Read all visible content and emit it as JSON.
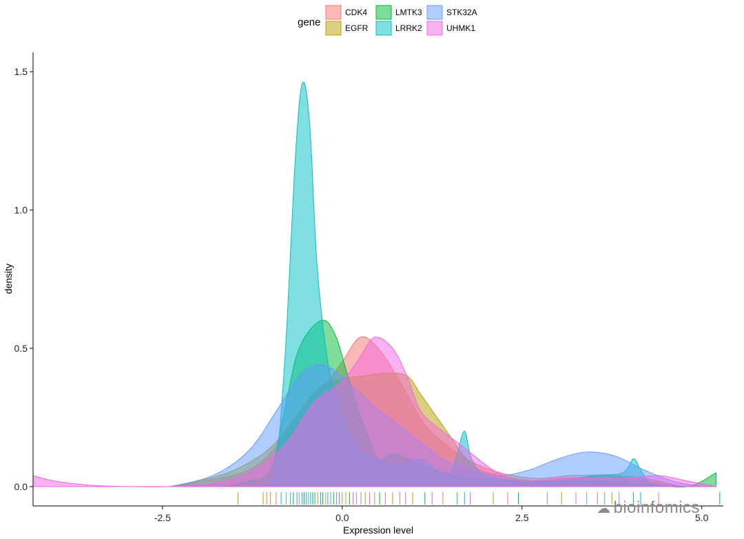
{
  "chart_data": {
    "type": "area",
    "xlabel": "Expression level",
    "ylabel": "density",
    "xlim": [
      -4.3,
      5.3
    ],
    "ylim": [
      -0.07,
      1.57
    ],
    "x_ticks": [
      -2.5,
      0.0,
      2.5,
      5.0
    ],
    "x_tick_labels": [
      "-2.5",
      "0.0",
      "2.5",
      "5.0"
    ],
    "y_ticks": [
      0.0,
      0.5,
      1.0,
      1.5
    ],
    "y_tick_labels": [
      "0.0",
      "0.5",
      "1.0",
      "1.5"
    ],
    "legend": {
      "title": "gene",
      "placement": "top"
    },
    "fill_opacity": 0.5,
    "series": [
      {
        "name": "CDK4",
        "color": "#F8766D",
        "points": [
          [
            -2.4,
            0.0
          ],
          [
            -1.9,
            0.02
          ],
          [
            -1.3,
            0.06
          ],
          [
            -0.9,
            0.15
          ],
          [
            -0.5,
            0.3
          ],
          [
            -0.2,
            0.38
          ],
          [
            0.0,
            0.45
          ],
          [
            0.25,
            0.54
          ],
          [
            0.5,
            0.5
          ],
          [
            0.8,
            0.38
          ],
          [
            1.1,
            0.24
          ],
          [
            1.4,
            0.16
          ],
          [
            1.8,
            0.09
          ],
          [
            2.2,
            0.05
          ],
          [
            2.7,
            0.03
          ],
          [
            3.2,
            0.04
          ],
          [
            3.7,
            0.04
          ],
          [
            4.2,
            0.02
          ],
          [
            4.7,
            0.0
          ]
        ]
      },
      {
        "name": "EGFR",
        "color": "#B79F00",
        "points": [
          [
            -2.4,
            0.0
          ],
          [
            -2.0,
            0.02
          ],
          [
            -1.5,
            0.06
          ],
          [
            -1.0,
            0.14
          ],
          [
            -0.6,
            0.27
          ],
          [
            -0.3,
            0.36
          ],
          [
            0.0,
            0.39
          ],
          [
            0.3,
            0.4
          ],
          [
            0.6,
            0.41
          ],
          [
            0.9,
            0.4
          ],
          [
            1.1,
            0.33
          ],
          [
            1.4,
            0.22
          ],
          [
            1.8,
            0.08
          ],
          [
            2.2,
            0.04
          ],
          [
            2.7,
            0.02
          ],
          [
            3.2,
            0.03
          ],
          [
            3.7,
            0.04
          ],
          [
            4.2,
            0.03
          ],
          [
            4.7,
            0.0
          ]
        ]
      },
      {
        "name": "LMTK3",
        "color": "#00BA38",
        "points": [
          [
            -1.6,
            0.0
          ],
          [
            -1.3,
            0.02
          ],
          [
            -1.0,
            0.06
          ],
          [
            -0.8,
            0.28
          ],
          [
            -0.6,
            0.5
          ],
          [
            -0.3,
            0.6
          ],
          [
            -0.1,
            0.55
          ],
          [
            0.1,
            0.38
          ],
          [
            0.3,
            0.22
          ],
          [
            0.5,
            0.1
          ],
          [
            0.7,
            0.12
          ],
          [
            0.9,
            0.1
          ],
          [
            1.1,
            0.08
          ],
          [
            1.4,
            0.05
          ],
          [
            1.8,
            0.03
          ],
          [
            2.5,
            0.02
          ],
          [
            3.5,
            0.02
          ],
          [
            4.2,
            0.01
          ],
          [
            4.8,
            0.0
          ],
          [
            5.2,
            0.05
          ]
        ]
      },
      {
        "name": "LRRK2",
        "color": "#00BFC4",
        "points": [
          [
            -1.2,
            0.0
          ],
          [
            -0.95,
            0.05
          ],
          [
            -0.8,
            0.45
          ],
          [
            -0.65,
            1.2
          ],
          [
            -0.55,
            1.46
          ],
          [
            -0.45,
            1.3
          ],
          [
            -0.35,
            0.8
          ],
          [
            -0.2,
            0.45
          ],
          [
            -0.05,
            0.3
          ],
          [
            0.2,
            0.15
          ],
          [
            0.5,
            0.1
          ],
          [
            0.8,
            0.08
          ],
          [
            1.1,
            0.1
          ],
          [
            1.3,
            0.06
          ],
          [
            1.5,
            0.05
          ],
          [
            1.6,
            0.12
          ],
          [
            1.7,
            0.2
          ],
          [
            1.8,
            0.1
          ],
          [
            2.0,
            0.04
          ],
          [
            2.5,
            0.02
          ],
          [
            3.0,
            0.02
          ],
          [
            3.5,
            0.04
          ],
          [
            3.9,
            0.05
          ],
          [
            4.05,
            0.1
          ],
          [
            4.15,
            0.06
          ],
          [
            4.3,
            0.01
          ],
          [
            4.6,
            0.0
          ]
        ]
      },
      {
        "name": "STK32A",
        "color": "#619CFF",
        "points": [
          [
            -2.4,
            0.0
          ],
          [
            -1.8,
            0.04
          ],
          [
            -1.3,
            0.13
          ],
          [
            -0.9,
            0.28
          ],
          [
            -0.6,
            0.4
          ],
          [
            -0.35,
            0.44
          ],
          [
            -0.1,
            0.42
          ],
          [
            0.2,
            0.35
          ],
          [
            0.5,
            0.28
          ],
          [
            0.8,
            0.22
          ],
          [
            1.1,
            0.16
          ],
          [
            1.4,
            0.1
          ],
          [
            1.8,
            0.06
          ],
          [
            2.2,
            0.04
          ],
          [
            2.6,
            0.06
          ],
          [
            3.0,
            0.1
          ],
          [
            3.4,
            0.125
          ],
          [
            3.8,
            0.11
          ],
          [
            4.2,
            0.06
          ],
          [
            4.6,
            0.02
          ],
          [
            5.0,
            0.0
          ]
        ]
      },
      {
        "name": "UHMK1",
        "color": "#F564E3",
        "points": [
          [
            -4.3,
            0.04
          ],
          [
            -4.0,
            0.02
          ],
          [
            -3.5,
            0.005
          ],
          [
            -3.0,
            0.0
          ],
          [
            -2.4,
            0.0
          ],
          [
            -1.8,
            0.01
          ],
          [
            -1.3,
            0.05
          ],
          [
            -0.8,
            0.15
          ],
          [
            -0.4,
            0.3
          ],
          [
            0.0,
            0.38
          ],
          [
            0.25,
            0.47
          ],
          [
            0.45,
            0.54
          ],
          [
            0.7,
            0.5
          ],
          [
            0.9,
            0.4
          ],
          [
            1.1,
            0.27
          ],
          [
            1.4,
            0.2
          ],
          [
            1.7,
            0.14
          ],
          [
            2.1,
            0.06
          ],
          [
            2.5,
            0.02
          ],
          [
            3.0,
            0.03
          ],
          [
            3.5,
            0.03
          ],
          [
            4.0,
            0.03
          ],
          [
            4.4,
            0.04
          ],
          [
            4.8,
            0.02
          ],
          [
            5.2,
            0.0
          ]
        ]
      }
    ],
    "rug": [
      {
        "x": -4.3,
        "color": "#F564E3"
      },
      {
        "x": -1.45,
        "color": "#B79F00"
      },
      {
        "x": -1.1,
        "color": "#B79F00"
      },
      {
        "x": -1.05,
        "color": "#F8766D"
      },
      {
        "x": -1.0,
        "color": "#B79F00"
      },
      {
        "x": -0.92,
        "color": "#F8766D"
      },
      {
        "x": -0.85,
        "color": "#00BFC4"
      },
      {
        "x": -0.78,
        "color": "#619CFF"
      },
      {
        "x": -0.72,
        "color": "#00BFC4"
      },
      {
        "x": -0.68,
        "color": "#00BA38"
      },
      {
        "x": -0.63,
        "color": "#00BFC4"
      },
      {
        "x": -0.6,
        "color": "#F564E3"
      },
      {
        "x": -0.56,
        "color": "#00BFC4"
      },
      {
        "x": -0.53,
        "color": "#00BA38"
      },
      {
        "x": -0.5,
        "color": "#00BFC4"
      },
      {
        "x": -0.47,
        "color": "#619CFF"
      },
      {
        "x": -0.44,
        "color": "#00BFC4"
      },
      {
        "x": -0.41,
        "color": "#00BA38"
      },
      {
        "x": -0.38,
        "color": "#00BFC4"
      },
      {
        "x": -0.34,
        "color": "#B79F00"
      },
      {
        "x": -0.3,
        "color": "#00BFC4"
      },
      {
        "x": -0.27,
        "color": "#00BA38"
      },
      {
        "x": -0.23,
        "color": "#F8766D"
      },
      {
        "x": -0.2,
        "color": "#00BFC4"
      },
      {
        "x": -0.16,
        "color": "#619CFF"
      },
      {
        "x": -0.12,
        "color": "#00BA38"
      },
      {
        "x": -0.08,
        "color": "#F564E3"
      },
      {
        "x": -0.04,
        "color": "#00BFC4"
      },
      {
        "x": 0.0,
        "color": "#F8766D"
      },
      {
        "x": 0.05,
        "color": "#B79F00"
      },
      {
        "x": 0.1,
        "color": "#00BA38"
      },
      {
        "x": 0.15,
        "color": "#F564E3"
      },
      {
        "x": 0.2,
        "color": "#F8766D"
      },
      {
        "x": 0.26,
        "color": "#619CFF"
      },
      {
        "x": 0.32,
        "color": "#B79F00"
      },
      {
        "x": 0.38,
        "color": "#F564E3"
      },
      {
        "x": 0.45,
        "color": "#F8766D"
      },
      {
        "x": 0.52,
        "color": "#00BA38"
      },
      {
        "x": 0.6,
        "color": "#F564E3"
      },
      {
        "x": 0.7,
        "color": "#B79F00"
      },
      {
        "x": 0.8,
        "color": "#F8766D"
      },
      {
        "x": 0.88,
        "color": "#F564E3"
      },
      {
        "x": 0.98,
        "color": "#B79F00"
      },
      {
        "x": 1.15,
        "color": "#00BA38"
      },
      {
        "x": 1.25,
        "color": "#F564E3"
      },
      {
        "x": 1.4,
        "color": "#F8766D"
      },
      {
        "x": 1.6,
        "color": "#00BFC4"
      },
      {
        "x": 1.7,
        "color": "#00BFC4"
      },
      {
        "x": 1.78,
        "color": "#F564E3"
      },
      {
        "x": 2.1,
        "color": "#B79F00"
      },
      {
        "x": 2.3,
        "color": "#F8766D"
      },
      {
        "x": 2.45,
        "color": "#00BA38"
      },
      {
        "x": 2.85,
        "color": "#619CFF"
      },
      {
        "x": 3.05,
        "color": "#B79F00"
      },
      {
        "x": 3.25,
        "color": "#F564E3"
      },
      {
        "x": 3.4,
        "color": "#619CFF"
      },
      {
        "x": 3.55,
        "color": "#F8766D"
      },
      {
        "x": 3.65,
        "color": "#619CFF"
      },
      {
        "x": 3.75,
        "color": "#B79F00"
      },
      {
        "x": 3.85,
        "color": "#619CFF"
      },
      {
        "x": 4.05,
        "color": "#00BFC4"
      },
      {
        "x": 4.15,
        "color": "#00BFC4"
      },
      {
        "x": 4.4,
        "color": "#F564E3"
      },
      {
        "x": 5.25,
        "color": "#00BA38"
      }
    ]
  },
  "watermark": {
    "text": "bioinfomics",
    "icon": "wechat-icon"
  }
}
